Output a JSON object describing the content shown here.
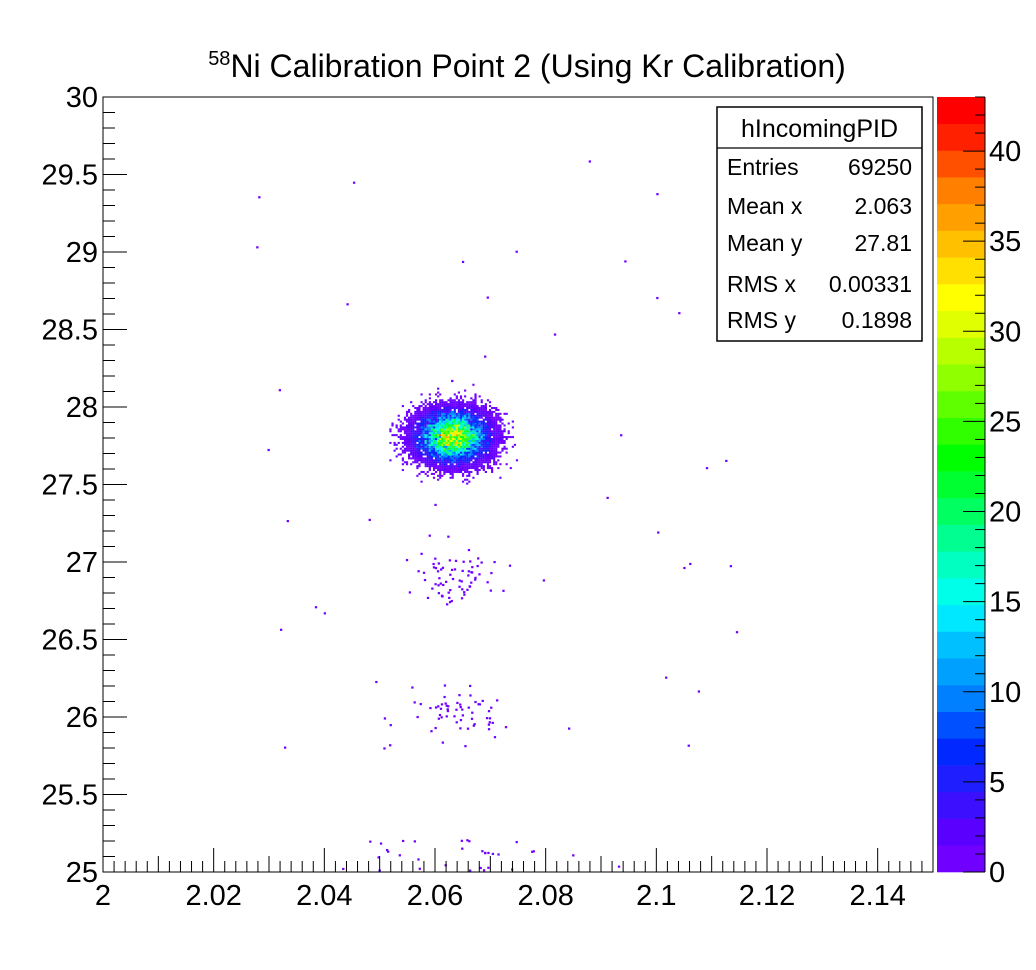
{
  "chart_data": {
    "type": "heatmap",
    "title": {
      "superscript": "58",
      "text": "Ni Calibration Point 2 (Using Kr Calibration)"
    },
    "xlabel": "",
    "ylabel": "",
    "xlim": [
      2.0,
      2.15
    ],
    "ylim": [
      25.0,
      30.0
    ],
    "x_ticks": [
      "2",
      "2.02",
      "2.04",
      "2.06",
      "2.08",
      "2.1",
      "2.12",
      "2.14"
    ],
    "x_tick_values": [
      2.0,
      2.02,
      2.04,
      2.06,
      2.08,
      2.1,
      2.12,
      2.14
    ],
    "y_ticks": [
      "25",
      "25.5",
      "26",
      "26.5",
      "27",
      "27.5",
      "28",
      "28.5",
      "29",
      "29.5",
      "30"
    ],
    "y_tick_values": [
      25,
      25.5,
      26,
      26.5,
      27,
      27.5,
      28,
      28.5,
      29,
      29.5,
      30
    ],
    "z_range": [
      0,
      43
    ],
    "z_ticks": [
      "0",
      "5",
      "10",
      "15",
      "20",
      "25",
      "30",
      "35",
      "40"
    ],
    "z_tick_values": [
      0,
      5,
      10,
      15,
      20,
      25,
      30,
      35,
      40
    ],
    "colormap": [
      "#7000ff",
      "#5a00ff",
      "#3c10ff",
      "#1e1eff",
      "#0028ff",
      "#0050ff",
      "#0080ff",
      "#00a0ff",
      "#00c0ff",
      "#00e8ff",
      "#00ffe8",
      "#00ffc0",
      "#00ff90",
      "#00ff60",
      "#00ff30",
      "#00ff00",
      "#30ff00",
      "#60ff00",
      "#90ff00",
      "#b8ff00",
      "#e0ff00",
      "#ffff00",
      "#ffe000",
      "#ffc000",
      "#ffa000",
      "#ff8000",
      "#ff5000",
      "#ff2000",
      "#ff0000"
    ],
    "clusters": [
      {
        "center": [
          2.0632,
          27.81
        ],
        "sigma": [
          0.0033,
          0.085
        ],
        "peak": 30
      },
      {
        "center": [
          2.064,
          26.9
        ],
        "sigma": [
          0.004,
          0.09
        ],
        "peak": 1
      },
      {
        "center": [
          2.064,
          26.03
        ],
        "sigma": [
          0.005,
          0.08
        ],
        "peak": 1
      }
    ],
    "legend": "none",
    "grid": false,
    "stats_box": {
      "name": "hIncomingPID",
      "placement": "top-right",
      "rows": [
        {
          "label": "Entries",
          "value": "69250"
        },
        {
          "label": "Mean x",
          "value": "2.063"
        },
        {
          "label": "Mean y",
          "value": "27.81"
        },
        {
          "label": "RMS x",
          "value": "0.00331"
        },
        {
          "label": "RMS y",
          "value": "0.1898"
        }
      ]
    }
  }
}
